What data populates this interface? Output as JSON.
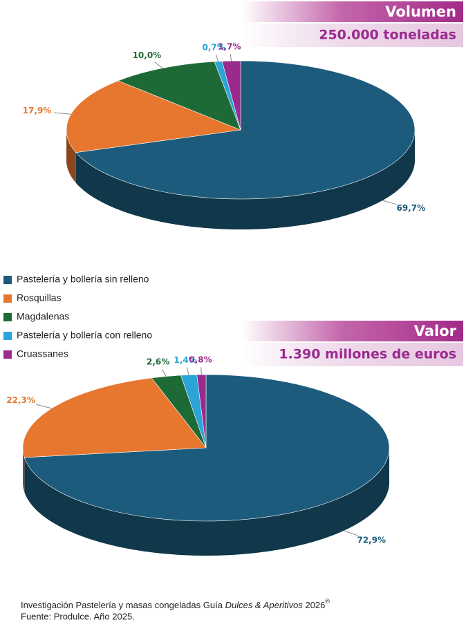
{
  "chart_data": [
    {
      "type": "pie",
      "title": "Volumen",
      "subtitle": "250.000 toneladas",
      "categories": [
        "Pastelería y bollería sin relleno",
        "Rosquillas",
        "Magdalenas",
        "Pastelería y bollería con relleno",
        "Cruassanes"
      ],
      "values": [
        69.7,
        17.9,
        10.0,
        0.7,
        1.7
      ],
      "value_labels": [
        "69,7%",
        "17,9%",
        "10,0%",
        "0,7%",
        "1,7%"
      ],
      "colors": [
        "#1d5b7c",
        "#e7772f",
        "#1e6a36",
        "#2ba5d8",
        "#9a2a8e"
      ]
    },
    {
      "type": "pie",
      "title": "Valor",
      "subtitle": "1.390  millones de euros",
      "values": [
        72.9,
        22.3,
        2.6,
        1.4,
        0.8
      ],
      "value_labels": [
        "72,9%",
        "22,3%",
        "2,6%",
        "1,4%",
        "0,8%"
      ],
      "colors": [
        "#1d5b7c",
        "#e7772f",
        "#1e6a36",
        "#2ba5d8",
        "#9a2a8e"
      ]
    }
  ],
  "notes": {
    "before": "Investigación Pastelería y masas congeladas Guía",
    "italic": "Dulces & Aperitivos",
    "after": "2026",
    "sup": "®",
    "source": "Fuente: Produlce. Año 2025."
  }
}
